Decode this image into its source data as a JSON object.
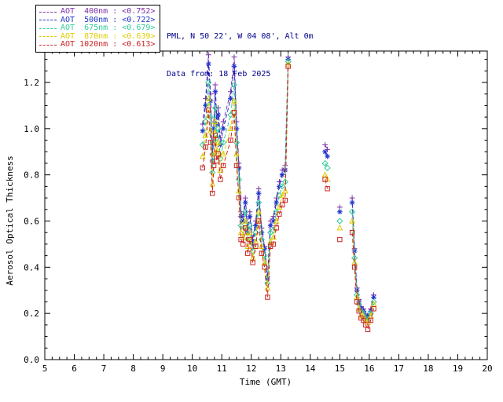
{
  "header": {
    "location_line": "PML, N 50 22', W 04 08', Alt 0m",
    "date_line": "Data from: 18 Feb 2025",
    "text_color": "#00008b"
  },
  "chart_data": {
    "type": "line",
    "title": "",
    "xlabel": "Time (GMT)",
    "ylabel": "Aerosol Optical Thickness",
    "xlim": [
      5,
      20
    ],
    "ylim": [
      0,
      1.336
    ],
    "grid": false,
    "legend_position": "top-left",
    "gap_threshold": 0.35,
    "xticks": [
      5,
      6,
      7,
      8,
      9,
      10,
      11,
      12,
      13,
      14,
      15,
      16,
      17,
      18,
      19,
      20
    ],
    "yticks": [
      {
        "v": 0.0,
        "label": "0.0"
      },
      {
        "v": 0.2,
        "label": "0.2"
      },
      {
        "v": 0.4,
        "label": "0.4"
      },
      {
        "v": 0.6,
        "label": "0.6"
      },
      {
        "v": 0.8,
        "label": "0.8"
      },
      {
        "v": 1.0,
        "label": "1.0"
      },
      {
        "v": 1.2,
        "label": "1.2"
      }
    ],
    "x": [
      10.35,
      10.45,
      10.55,
      10.62,
      10.68,
      10.73,
      10.78,
      10.83,
      10.88,
      10.95,
      11.05,
      11.3,
      11.42,
      11.5,
      11.58,
      11.65,
      11.72,
      11.8,
      11.88,
      11.95,
      12.05,
      12.15,
      12.25,
      12.35,
      12.45,
      12.55,
      12.65,
      12.75,
      12.85,
      12.95,
      13.05,
      13.15,
      13.25,
      14.5,
      14.58,
      15.0,
      15.42,
      15.5,
      15.58,
      15.65,
      15.72,
      15.8,
      15.88,
      15.95,
      16.05,
      16.15
    ],
    "series": [
      {
        "name": "AOT 400nm",
        "legend_label": "AOT  400nm : <0.752>",
        "mean": "<0.752>",
        "color": "#7b2fa8",
        "marker": "plus",
        "dash": "5 3",
        "values": [
          1.02,
          1.13,
          1.32,
          1.15,
          0.89,
          1.03,
          1.19,
          1.05,
          1.09,
          0.96,
          1.03,
          1.16,
          1.31,
          1.03,
          0.85,
          0.64,
          0.62,
          0.7,
          0.57,
          0.64,
          0.52,
          0.6,
          0.74,
          0.57,
          0.49,
          0.36,
          0.6,
          0.62,
          0.7,
          0.77,
          0.82,
          0.84,
          1.31,
          0.93,
          0.91,
          0.66,
          0.7,
          0.48,
          0.31,
          0.26,
          0.23,
          0.22,
          0.2,
          0.19,
          0.22,
          0.28
        ]
      },
      {
        "name": "AOT 500nm",
        "legend_label": "AOT  500nm : <0.722>",
        "mean": "<0.722>",
        "color": "#2233cc",
        "marker": "asterisk",
        "dash": "5 3",
        "values": [
          0.99,
          1.1,
          1.28,
          1.12,
          0.86,
          1.0,
          1.16,
          1.02,
          1.06,
          0.93,
          1.0,
          1.13,
          1.27,
          1.0,
          0.83,
          0.62,
          0.6,
          0.68,
          0.55,
          0.62,
          0.5,
          0.58,
          0.72,
          0.55,
          0.48,
          0.35,
          0.58,
          0.6,
          0.68,
          0.75,
          0.8,
          0.82,
          1.3,
          0.9,
          0.88,
          0.64,
          0.68,
          0.47,
          0.3,
          0.25,
          0.22,
          0.21,
          0.19,
          0.18,
          0.21,
          0.27
        ]
      },
      {
        "name": "AOT 675nm",
        "legend_label": "AOT  675nm : <0.679>",
        "mean": "<0.679>",
        "color": "#33cc99",
        "marker": "diamond",
        "dash": "5 3",
        "values": [
          0.93,
          1.03,
          1.2,
          1.05,
          0.81,
          0.94,
          1.09,
          0.96,
          1.0,
          0.87,
          0.94,
          1.06,
          1.19,
          0.94,
          0.78,
          0.58,
          0.56,
          0.64,
          0.52,
          0.58,
          0.47,
          0.55,
          0.68,
          0.52,
          0.45,
          0.33,
          0.55,
          0.56,
          0.64,
          0.71,
          0.75,
          0.77,
          1.29,
          0.85,
          0.83,
          0.6,
          0.64,
          0.44,
          0.28,
          0.24,
          0.21,
          0.2,
          0.18,
          0.17,
          0.2,
          0.25
        ]
      },
      {
        "name": "AOT 870nm",
        "legend_label": "AOT  870nm : <0.639>",
        "mean": "<0.639>",
        "color": "#ddcc00",
        "marker": "triangle",
        "dash": "5 3",
        "values": [
          0.88,
          0.97,
          1.13,
          0.99,
          0.76,
          0.89,
          1.03,
          0.9,
          0.94,
          0.82,
          0.89,
          1.0,
          1.12,
          0.89,
          0.73,
          0.55,
          0.53,
          0.6,
          0.49,
          0.55,
          0.44,
          0.51,
          0.64,
          0.49,
          0.42,
          0.31,
          0.51,
          0.53,
          0.6,
          0.66,
          0.71,
          0.73,
          1.28,
          0.8,
          0.78,
          0.57,
          0.6,
          0.42,
          0.27,
          0.22,
          0.19,
          0.19,
          0.17,
          0.16,
          0.19,
          0.24
        ]
      },
      {
        "name": "AOT 1020nm",
        "legend_label": "AOT 1020nm : <0.613>",
        "mean": "<0.613>",
        "color": "#cc2222",
        "marker": "square",
        "dash": "5 3",
        "values": [
          0.83,
          0.92,
          1.08,
          0.94,
          0.72,
          0.84,
          0.97,
          0.86,
          0.89,
          0.78,
          0.84,
          0.95,
          1.07,
          0.84,
          0.7,
          0.52,
          0.5,
          0.57,
          0.46,
          0.52,
          0.42,
          0.49,
          0.6,
          0.46,
          0.4,
          0.27,
          0.49,
          0.5,
          0.57,
          0.63,
          0.67,
          0.69,
          1.27,
          0.78,
          0.74,
          0.52,
          0.55,
          0.4,
          0.25,
          0.21,
          0.18,
          0.17,
          0.15,
          0.13,
          0.17,
          0.22
        ]
      }
    ]
  }
}
